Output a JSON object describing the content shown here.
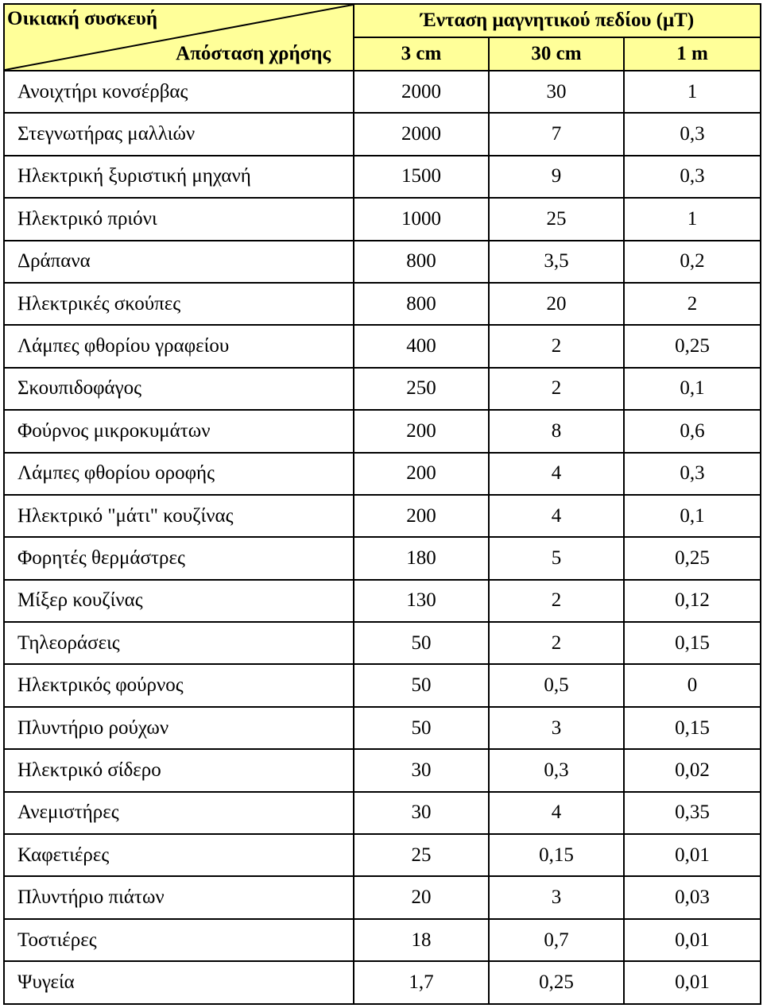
{
  "header": {
    "appliance_label": "Οικιακή συσκευή",
    "distance_label": "Απόσταση χρήσης",
    "field_strength_label": "Ένταση μαγνητικού πεδίου (μT)",
    "distances": [
      "3 cm",
      "30 cm",
      "1 m"
    ]
  },
  "rows": [
    {
      "name": "Ανοιχτήρι κονσέρβας",
      "v3cm": "2000",
      "v30cm": "30",
      "v1m": "1"
    },
    {
      "name": "Στεγνωτήρας μαλλιών",
      "v3cm": "2000",
      "v30cm": "7",
      "v1m": "0,3"
    },
    {
      "name": "Ηλεκτρική ξυριστική μηχανή",
      "v3cm": "1500",
      "v30cm": "9",
      "v1m": "0,3"
    },
    {
      "name": "Ηλεκτρικό πριόνι",
      "v3cm": "1000",
      "v30cm": "25",
      "v1m": "1"
    },
    {
      "name": "Δράπανα",
      "v3cm": "800",
      "v30cm": "3,5",
      "v1m": "0,2"
    },
    {
      "name": "Ηλεκτρικές σκούπες",
      "v3cm": "800",
      "v30cm": "20",
      "v1m": "2"
    },
    {
      "name": "Λάμπες φθορίου γραφείου",
      "v3cm": "400",
      "v30cm": "2",
      "v1m": "0,25"
    },
    {
      "name": "Σκουπιδοφάγος",
      "v3cm": "250",
      "v30cm": "2",
      "v1m": "0,1"
    },
    {
      "name": "Φούρνος μικροκυμάτων",
      "v3cm": "200",
      "v30cm": "8",
      "v1m": "0,6"
    },
    {
      "name": "Λάμπες φθορίου οροφής",
      "v3cm": "200",
      "v30cm": "4",
      "v1m": "0,3"
    },
    {
      "name": "Ηλεκτρικό \"μάτι\" κουζίνας",
      "v3cm": "200",
      "v30cm": "4",
      "v1m": "0,1"
    },
    {
      "name": "Φορητές θερμάστρες",
      "v3cm": "180",
      "v30cm": "5",
      "v1m": "0,25"
    },
    {
      "name": "Μίξερ κουζίνας",
      "v3cm": "130",
      "v30cm": "2",
      "v1m": "0,12"
    },
    {
      "name": "Τηλεοράσεις",
      "v3cm": "50",
      "v30cm": "2",
      "v1m": "0,15"
    },
    {
      "name": "Ηλεκτρικός φούρνος",
      "v3cm": "50",
      "v30cm": "0,5",
      "v1m": "0"
    },
    {
      "name": "Πλυντήριο ρούχων",
      "v3cm": "50",
      "v30cm": "3",
      "v1m": "0,15"
    },
    {
      "name": "Ηλεκτρικό σίδερο",
      "v3cm": "30",
      "v30cm": "0,3",
      "v1m": "0,02"
    },
    {
      "name": "Ανεμιστήρες",
      "v3cm": "30",
      "v30cm": "4",
      "v1m": "0,35"
    },
    {
      "name": "Καφετιέρες",
      "v3cm": "25",
      "v30cm": "0,15",
      "v1m": "0,01"
    },
    {
      "name": "Πλυντήριο πιάτων",
      "v3cm": "20",
      "v30cm": "3",
      "v1m": "0,03"
    },
    {
      "name": "Τοστιέρες",
      "v3cm": "18",
      "v30cm": "0,7",
      "v1m": "0,01"
    },
    {
      "name": "Ψυγεία",
      "v3cm": "1,7",
      "v30cm": "0,25",
      "v1m": "0,01"
    }
  ],
  "colors": {
    "header_background": "#ffff99",
    "border": "#000000"
  }
}
